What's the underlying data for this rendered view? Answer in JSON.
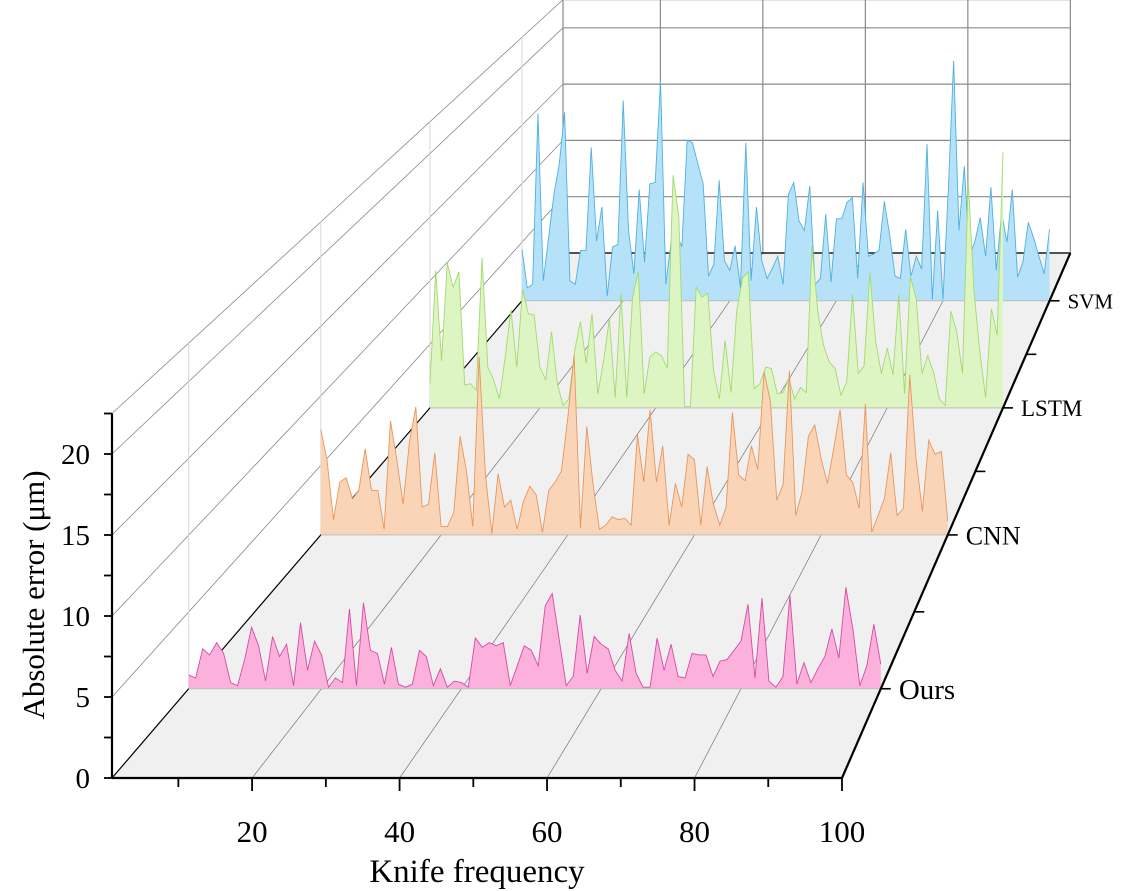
{
  "chart_data": {
    "type": "area",
    "subtype": "3d-waterfall",
    "title": "",
    "xlabel": "Knife frequency",
    "ylabel": "Absolute error (μm)",
    "x_range": [
      1,
      100
    ],
    "xlim": [
      1,
      100
    ],
    "zlim": [
      0,
      22.5
    ],
    "x_ticks": [
      "20",
      "40",
      "60",
      "80",
      "100"
    ],
    "x_tick_values": [
      20,
      40,
      60,
      80,
      100
    ],
    "y_ticks": [
      "0",
      "5",
      "10",
      "15",
      "20"
    ],
    "y_tick_values": [
      0,
      5,
      10,
      15,
      20
    ],
    "grid": true,
    "legend": "none",
    "series": [
      {
        "name": "SVM",
        "fill": "#b5e1f9",
        "stroke": "#4fb1e0",
        "values": [
          4.4,
          1.1,
          1.4,
          16.0,
          1.7,
          5.4,
          9.1,
          11.7,
          16.1,
          1.7,
          1.4,
          4.3,
          4.3,
          13.1,
          5.1,
          8.0,
          0.4,
          4.6,
          4.8,
          17.1,
          6.0,
          2.3,
          9.5,
          3.3,
          10.0,
          10.1,
          18.8,
          1.4,
          5.1,
          5.7,
          4.6,
          13.7,
          13.5,
          11.7,
          10.0,
          2.1,
          3.1,
          10.3,
          3.4,
          2.6,
          4.7,
          1.1,
          13.5,
          1.7,
          8.0,
          3.4,
          1.9,
          2.8,
          3.8,
          1.4,
          9.1,
          10.1,
          6.8,
          6.0,
          9.8,
          1.4,
          1.9,
          7.4,
          1.6,
          7.0,
          7.0,
          8.4,
          8.8,
          1.9,
          10.1,
          3.8,
          4.0,
          4.3,
          8.5,
          5.6,
          2.1,
          1.9,
          6.1,
          2.1,
          3.8,
          2.7,
          13.4,
          0.1,
          7.7,
          0.1,
          9.5,
          20.5,
          6.0,
          11.5,
          3.8,
          5.1,
          7.1,
          3.8,
          9.7,
          2.6,
          7.5,
          5.0,
          9.5,
          2.0,
          3.3,
          6.7,
          5.4,
          3.8,
          2.3,
          6.1
        ]
      },
      {
        "name": "LSTM",
        "fill": "#ddf5c2",
        "stroke": "#a3da6c",
        "values": [
          1.9,
          10.8,
          3.7,
          11.4,
          9.5,
          10.7,
          1.8,
          1.9,
          1.4,
          11.8,
          3.2,
          2.2,
          0.7,
          4.0,
          7.7,
          3.2,
          9.3,
          7.4,
          7.3,
          3.2,
          2.2,
          6.0,
          1.9,
          0.2,
          0.7,
          4.5,
          6.8,
          3.5,
          7.4,
          1.1,
          3.7,
          7.0,
          0.8,
          9.0,
          0.8,
          8.7,
          10.7,
          1.1,
          4.0,
          4.4,
          4.1,
          3.1,
          18.3,
          15.0,
          0.1,
          0.1,
          9.5,
          8.7,
          9.0,
          2.9,
          0.7,
          5.3,
          1.2,
          7.6,
          10.2,
          10.7,
          1.5,
          1.9,
          3.2,
          3.1,
          1.1,
          1.2,
          2.3,
          0.7,
          1.6,
          1.2,
          12.7,
          7.6,
          4.9,
          3.6,
          3.1,
          1.0,
          2.0,
          8.9,
          2.7,
          3.3,
          10.6,
          5.2,
          2.7,
          4.7,
          2.6,
          8.9,
          1.1,
          10.3,
          8.6,
          2.7,
          4.1,
          2.8,
          0.7,
          0.2,
          7.6,
          6.0,
          2.7,
          17.8,
          9.1,
          4.4,
          0.8,
          7.8,
          5.7,
          20.1
        ]
      },
      {
        "name": "CNN",
        "fill": "#f9d4b6",
        "stroke": "#e8965c",
        "values": [
          7.6,
          5.3,
          1.1,
          3.8,
          4.1,
          2.6,
          3.2,
          6.2,
          3.2,
          3.2,
          0.4,
          8.2,
          5.4,
          2.2,
          6.7,
          9.2,
          2.0,
          2.2,
          5.9,
          0.6,
          0.6,
          1.6,
          7.1,
          4.6,
          0.6,
          12.8,
          4.3,
          0.1,
          4.4,
          2.0,
          2.5,
          0.4,
          2.4,
          3.5,
          2.9,
          0.2,
          3.2,
          3.8,
          4.6,
          8.4,
          12.9,
          0.5,
          7.8,
          3.6,
          0.4,
          0.7,
          1.3,
          1.1,
          1.2,
          0.7,
          7.2,
          3.8,
          9.0,
          3.8,
          6.4,
          0.7,
          3.7,
          2.0,
          5.8,
          5.4,
          0.7,
          4.9,
          2.2,
          0.7,
          2.0,
          8.8,
          4.3,
          3.9,
          6.4,
          4.7,
          11.7,
          9.6,
          2.5,
          3.6,
          11.8,
          1.4,
          3.1,
          7.1,
          7.9,
          5.5,
          3.7,
          6.2,
          9.0,
          4.3,
          3.8,
          1.9,
          9.4,
          0.2,
          1.4,
          2.6,
          5.9,
          1.4,
          1.9,
          11.5,
          5.5,
          1.7,
          6.8,
          5.8,
          6.0,
          1.0
        ]
      },
      {
        "name": "Ours",
        "fill": "#fcb0dc",
        "stroke": "#d64aa5",
        "values": [
          0.9,
          0.7,
          2.6,
          2.2,
          3.0,
          2.3,
          0.4,
          0.2,
          1.9,
          4.0,
          2.8,
          0.5,
          3.4,
          2.1,
          2.9,
          0.2,
          4.3,
          1.2,
          3.1,
          2.2,
          0.1,
          0.7,
          0.4,
          5.2,
          0.2,
          5.6,
          2.5,
          2.3,
          0.3,
          2.7,
          0.3,
          0.1,
          0.3,
          2.5,
          2.1,
          0.2,
          1.3,
          0.1,
          0.5,
          0.4,
          0.1,
          3.3,
          2.7,
          3.0,
          2.8,
          3.0,
          0.2,
          1.5,
          2.8,
          2.5,
          1.5,
          5.4,
          6.2,
          3.2,
          0.2,
          0.8,
          4.8,
          1.0,
          3.4,
          2.9,
          2.6,
          1.2,
          0.5,
          3.6,
          1.0,
          0.1,
          0.1,
          3.3,
          1.2,
          2.9,
          0.8,
          0.7,
          2.3,
          2.2,
          2.2,
          0.8,
          1.8,
          1.9,
          2.5,
          3.1,
          5.5,
          0.7,
          5.9,
          0.5,
          0.1,
          0.8,
          6.1,
          0.3,
          1.7,
          0.4,
          1.3,
          2.1,
          3.9,
          2.0,
          6.6,
          3.9,
          0.2,
          1.5,
          4.2,
          1.6
        ]
      }
    ]
  }
}
